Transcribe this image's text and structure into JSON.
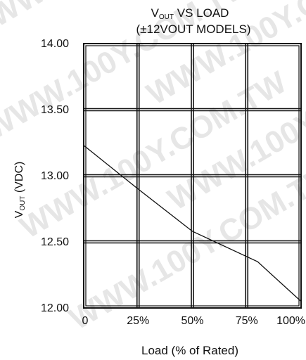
{
  "watermark": "WWW.100Y.COM.TW",
  "chart_data": {
    "type": "line",
    "title_line1_main": "V",
    "title_line1_sub": "OUT",
    "title_line1_rest": " VS LOAD",
    "title_line2": "(±12VOUT MODELS)",
    "ylabel_main": "V",
    "ylabel_sub": "OUT",
    "ylabel_rest": " (VDC)",
    "xlabel": "Load (% of Rated)",
    "x_ticks": [
      {
        "value": 0,
        "label": "0"
      },
      {
        "value": 25,
        "label": "25%"
      },
      {
        "value": 50,
        "label": "50%"
      },
      {
        "value": 75,
        "label": "75%"
      },
      {
        "value": 100,
        "label": "100%"
      }
    ],
    "y_ticks": [
      {
        "value": 14.0,
        "label": "14.00"
      },
      {
        "value": 13.5,
        "label": "13.50"
      },
      {
        "value": 13.0,
        "label": "13.00"
      },
      {
        "value": 12.5,
        "label": "12.50"
      },
      {
        "value": 12.0,
        "label": "12.00"
      }
    ],
    "xlim": [
      0,
      100
    ],
    "ylim": [
      12.0,
      14.0
    ],
    "grid": true,
    "series": [
      {
        "x": [
          0,
          25,
          50,
          80,
          100
        ],
        "y": [
          13.23,
          12.9,
          12.58,
          12.35,
          12.05
        ]
      }
    ]
  }
}
